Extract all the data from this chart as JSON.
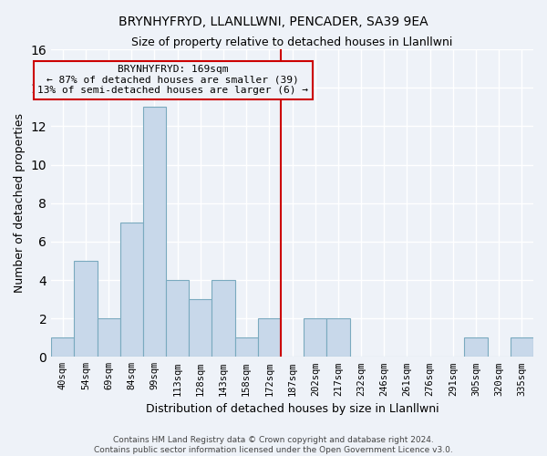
{
  "title": "BRYNHYFRYD, LLANLLWNI, PENCADER, SA39 9EA",
  "subtitle": "Size of property relative to detached houses in Llanllwni",
  "xlabel": "Distribution of detached houses by size in Llanllwni",
  "ylabel": "Number of detached properties",
  "bin_labels": [
    "40sqm",
    "54sqm",
    "69sqm",
    "84sqm",
    "99sqm",
    "113sqm",
    "128sqm",
    "143sqm",
    "158sqm",
    "172sqm",
    "187sqm",
    "202sqm",
    "217sqm",
    "232sqm",
    "246sqm",
    "261sqm",
    "276sqm",
    "291sqm",
    "305sqm",
    "320sqm",
    "335sqm"
  ],
  "bar_heights": [
    1,
    5,
    2,
    7,
    13,
    4,
    3,
    4,
    1,
    2,
    0,
    2,
    2,
    0,
    0,
    0,
    0,
    0,
    1,
    0,
    1
  ],
  "bar_color": "#c8d8ea",
  "bar_edge_color": "#7aaabf",
  "vline_x": 9.5,
  "vline_color": "#cc0000",
  "ylim": [
    0,
    16
  ],
  "yticks": [
    0,
    2,
    4,
    6,
    8,
    10,
    12,
    14,
    16
  ],
  "annotation_title": "BRYNHYFRYD: 169sqm",
  "annotation_line1": "← 87% of detached houses are smaller (39)",
  "annotation_line2": "13% of semi-detached houses are larger (6) →",
  "footer_line1": "Contains HM Land Registry data © Crown copyright and database right 2024.",
  "footer_line2": "Contains public sector information licensed under the Open Government Licence v3.0.",
  "background_color": "#eef2f8",
  "grid_color": "#ffffff",
  "title_fontsize": 10,
  "subtitle_fontsize": 9,
  "ylabel_fontsize": 9,
  "xlabel_fontsize": 9,
  "tick_fontsize": 7.5,
  "annot_fontsize": 8,
  "footer_fontsize": 6.5
}
